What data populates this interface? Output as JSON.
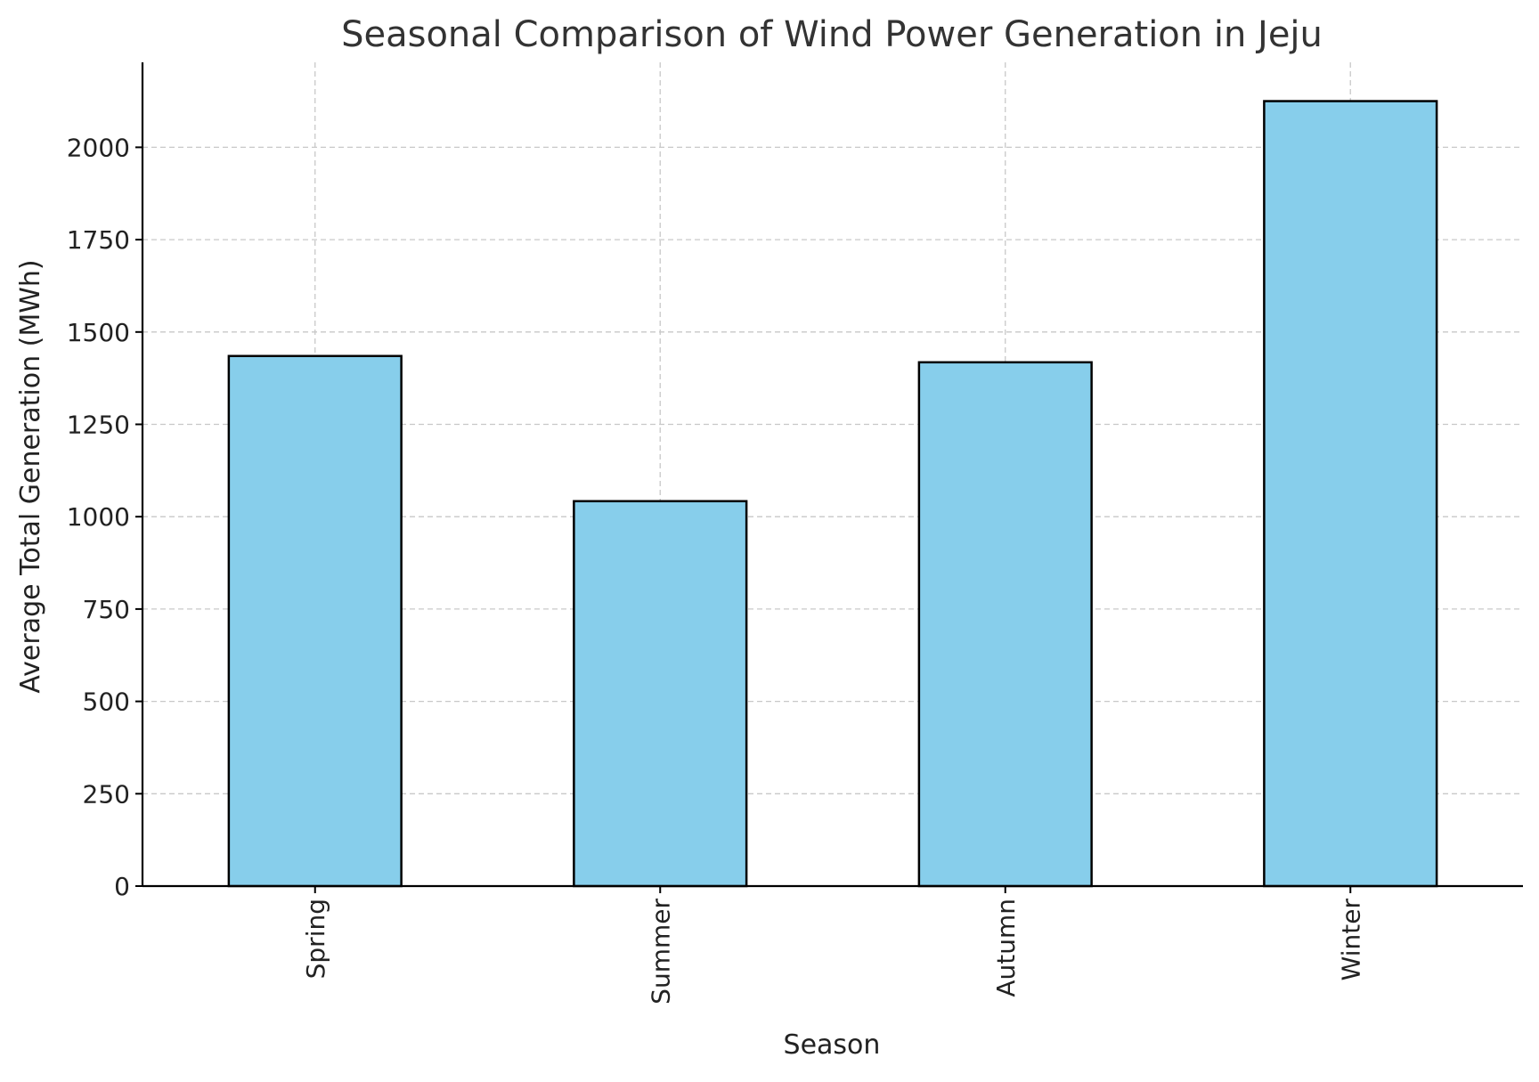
{
  "chart_data": {
    "type": "bar",
    "title": "Seasonal Comparison of Wind Power Generation in Jeju",
    "xlabel": "Season",
    "ylabel": "Average Total Generation (MWh)",
    "categories": [
      "Spring",
      "Summer",
      "Autumn",
      "Winter"
    ],
    "values": [
      1435,
      1042,
      1418,
      2125
    ],
    "ylim": [
      0,
      2230
    ],
    "yticks": [
      0,
      250,
      500,
      750,
      1000,
      1250,
      1500,
      1750,
      2000
    ],
    "grid": true,
    "bar_color": "#87ceeb",
    "bar_edge_color": "#000000",
    "grid_color": "#c8c8c8",
    "text_color": "#222222",
    "title_color": "#333333"
  }
}
